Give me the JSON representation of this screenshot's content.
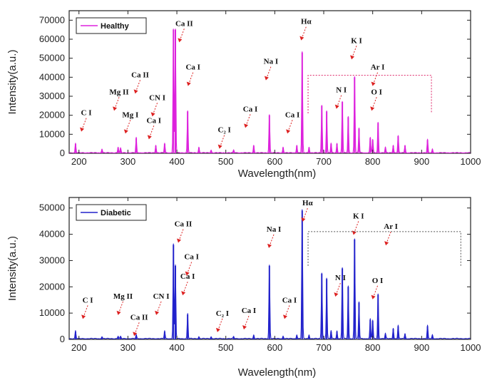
{
  "chart_data": [
    {
      "type": "line",
      "legend": "Healthy",
      "legend_placement": "top-left",
      "color": "#dd22dd",
      "xlabel": "Wavelength(nm)",
      "ylabel": "Intensity(a.u.)",
      "xlim": [
        180,
        1000
      ],
      "ylim": [
        0,
        75000
      ],
      "xticks": [
        200,
        300,
        400,
        500,
        600,
        700,
        800,
        900,
        1000
      ],
      "yticks": [
        0,
        10000,
        20000,
        30000,
        40000,
        50000,
        60000,
        70000
      ],
      "grid": false,
      "peaks": [
        [
          193,
          5000
        ],
        [
          247,
          2000
        ],
        [
          280,
          3000
        ],
        [
          285,
          2500
        ],
        [
          317,
          8000
        ],
        [
          357,
          4000
        ],
        [
          375,
          5000
        ],
        [
          393,
          65000
        ],
        [
          397,
          65000
        ],
        [
          422,
          22000
        ],
        [
          445,
          3000
        ],
        [
          470,
          1500
        ],
        [
          516,
          1500
        ],
        [
          557,
          4000
        ],
        [
          589,
          20000
        ],
        [
          617,
          3000
        ],
        [
          645,
          4000
        ],
        [
          656,
          53000
        ],
        [
          670,
          3000
        ],
        [
          696,
          25000
        ],
        [
          706,
          22000
        ],
        [
          715,
          5000
        ],
        [
          727,
          5000
        ],
        [
          738,
          27000
        ],
        [
          750,
          19000
        ],
        [
          763,
          40000
        ],
        [
          772,
          13000
        ],
        [
          795,
          8000
        ],
        [
          800,
          7000
        ],
        [
          811,
          16000
        ],
        [
          826,
          3000
        ],
        [
          842,
          4000
        ],
        [
          852,
          9000
        ],
        [
          866,
          4000
        ],
        [
          912,
          7000
        ],
        [
          922,
          2000
        ]
      ],
      "annotations": [
        {
          "text": "C I",
          "x": 215,
          "y": 20000
        },
        {
          "text": "Mg II",
          "x": 282,
          "y": 31000
        },
        {
          "text": "Mg I",
          "x": 305,
          "y": 19000
        },
        {
          "text": "Ca II",
          "x": 325,
          "y": 40000
        },
        {
          "text": "CN I",
          "x": 360,
          "y": 28000
        },
        {
          "text": "Ca I",
          "x": 353,
          "y": 16000
        },
        {
          "text": "Ca II",
          "x": 415,
          "y": 67000
        },
        {
          "text": "Ca I",
          "x": 433,
          "y": 44000
        },
        {
          "text": "C₂ I",
          "x": 497,
          "y": 11000
        },
        {
          "text": "Ca I",
          "x": 550,
          "y": 22000
        },
        {
          "text": "Na I",
          "x": 592,
          "y": 47000
        },
        {
          "text": "Ca I",
          "x": 636,
          "y": 19000
        },
        {
          "text": "Hα",
          "x": 664,
          "y": 68000
        },
        {
          "text": "K I",
          "x": 767,
          "y": 58000
        },
        {
          "text": "Ar I",
          "x": 810,
          "y": 44000
        },
        {
          "text": "N I",
          "x": 736,
          "y": 32000
        },
        {
          "text": "O I",
          "x": 808,
          "y": 31000
        }
      ],
      "ar_region": {
        "x_start": 668,
        "x_end": 920,
        "y_top": 41000,
        "y_bottom": 21000
      }
    },
    {
      "type": "line",
      "legend": "Diabetic",
      "legend_placement": "top-left",
      "color": "#2222cc",
      "xlabel": "Wavelength(nm)",
      "ylabel": "Intensity(a.u.)",
      "xlim": [
        180,
        1000
      ],
      "ylim": [
        0,
        54000
      ],
      "xticks": [
        200,
        300,
        400,
        500,
        600,
        700,
        800,
        900,
        1000
      ],
      "yticks": [
        0,
        10000,
        20000,
        30000,
        40000,
        50000
      ],
      "grid": false,
      "peaks": [
        [
          193,
          3000
        ],
        [
          247,
          800
        ],
        [
          280,
          1000
        ],
        [
          285,
          800
        ],
        [
          317,
          1500
        ],
        [
          375,
          3000
        ],
        [
          393,
          36000
        ],
        [
          397,
          28000
        ],
        [
          422,
          9500
        ],
        [
          445,
          800
        ],
        [
          470,
          800
        ],
        [
          516,
          800
        ],
        [
          557,
          1500
        ],
        [
          589,
          28000
        ],
        [
          617,
          1000
        ],
        [
          645,
          1500
        ],
        [
          656,
          49000
        ],
        [
          670,
          1500
        ],
        [
          696,
          25000
        ],
        [
          706,
          23000
        ],
        [
          715,
          3000
        ],
        [
          727,
          3000
        ],
        [
          738,
          27000
        ],
        [
          750,
          20000
        ],
        [
          763,
          38000
        ],
        [
          772,
          14000
        ],
        [
          795,
          7500
        ],
        [
          800,
          7000
        ],
        [
          811,
          17000
        ],
        [
          826,
          2000
        ],
        [
          842,
          4000
        ],
        [
          852,
          5000
        ],
        [
          866,
          2000
        ],
        [
          912,
          5000
        ],
        [
          922,
          1500
        ]
      ],
      "annotations": [
        {
          "text": "C I",
          "x": 218,
          "y": 14000
        },
        {
          "text": "Mg II",
          "x": 290,
          "y": 15500
        },
        {
          "text": "Ca II",
          "x": 323,
          "y": 7500
        },
        {
          "text": "CN I",
          "x": 368,
          "y": 15500
        },
        {
          "text": "Ca II",
          "x": 413,
          "y": 43000
        },
        {
          "text": "Ca I",
          "x": 430,
          "y": 30500
        },
        {
          "text": "Ca I",
          "x": 422,
          "y": 23000
        },
        {
          "text": "C₂ I",
          "x": 493,
          "y": 9000
        },
        {
          "text": "Ca I",
          "x": 547,
          "y": 10000
        },
        {
          "text": "Na I",
          "x": 598,
          "y": 41000
        },
        {
          "text": "Ca I",
          "x": 630,
          "y": 14000
        },
        {
          "text": "Hα",
          "x": 667,
          "y": 51000
        },
        {
          "text": "K I",
          "x": 771,
          "y": 46000
        },
        {
          "text": "Ar I",
          "x": 837,
          "y": 42000
        },
        {
          "text": "N I",
          "x": 734,
          "y": 22500
        },
        {
          "text": "O I",
          "x": 810,
          "y": 21500
        }
      ],
      "ar_region": {
        "x_start": 668,
        "x_end": 980,
        "y_top": 41000,
        "y_bottom": 28000
      }
    }
  ]
}
